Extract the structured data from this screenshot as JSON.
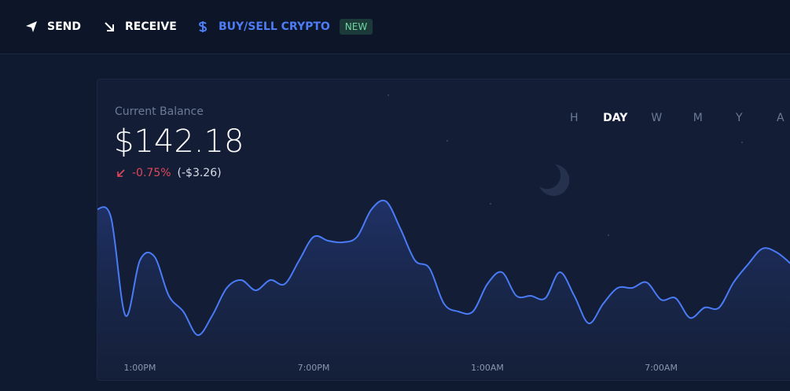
{
  "nav": {
    "items": [
      {
        "label": "SEND"
      },
      {
        "label": "RECEIVE"
      },
      {
        "label": "BUY/SELL CRYPTO",
        "badge": "NEW"
      }
    ]
  },
  "balance": {
    "label": "Current Balance",
    "amount": "$142.18",
    "change_percent": "-0.75%",
    "change_amount": "(-$3.26)"
  },
  "ranges": [
    "H",
    "DAY",
    "W",
    "M",
    "Y",
    "A"
  ],
  "chart_data": {
    "type": "line",
    "categories": [
      null,
      null,
      null,
      "1:00PM",
      null,
      null,
      null,
      null,
      null,
      null,
      null,
      null,
      null,
      null,
      null,
      "7:00PM",
      null,
      null,
      null,
      null,
      null,
      null,
      null,
      null,
      null,
      null,
      null,
      "1:00AM",
      null,
      null,
      null,
      null,
      null,
      null,
      null,
      null,
      null,
      null,
      null,
      "7:00AM",
      null,
      null,
      null,
      null,
      null,
      null,
      null,
      null,
      null
    ],
    "series": [
      {
        "color": "#4a7bf7",
        "values": [
          215,
          205,
          80,
          150,
          155,
          105,
          85,
          55,
          80,
          115,
          125,
          112,
          125,
          120,
          150,
          180,
          175,
          173,
          180,
          215,
          225,
          190,
          150,
          140,
          95,
          85,
          85,
          120,
          135,
          105,
          105,
          102,
          135,
          105,
          70,
          95,
          115,
          115,
          122,
          100,
          102,
          77,
          90,
          90,
          122,
          145,
          165,
          160,
          145
        ]
      }
    ],
    "ylim": [
      0,
      380
    ]
  }
}
